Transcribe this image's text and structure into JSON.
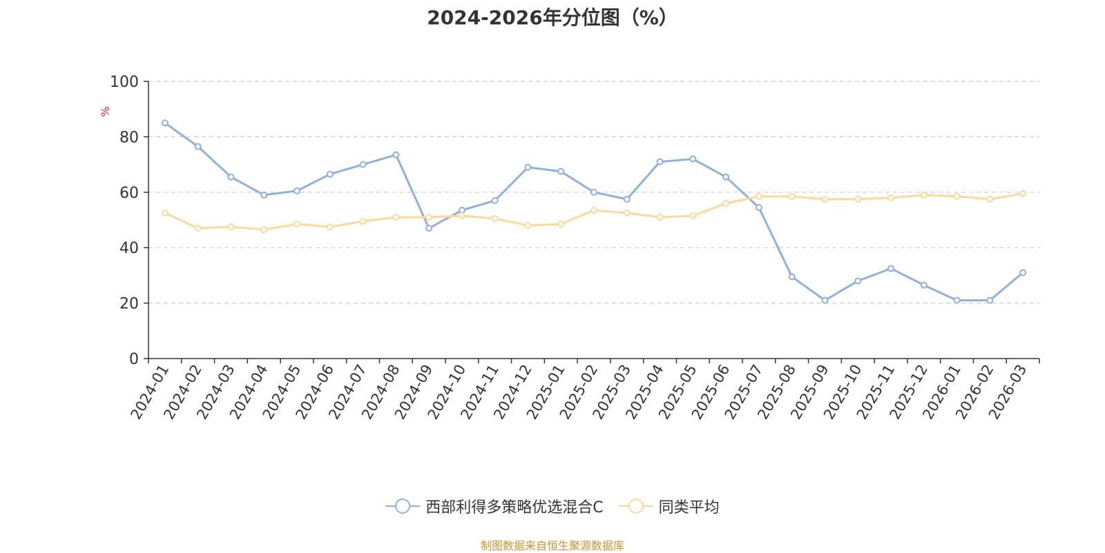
{
  "chart_data": {
    "type": "line",
    "title": "2024-2026年分位图（%）",
    "ylabel": "%",
    "xlabel": "",
    "ylim": [
      0,
      100
    ],
    "yticks": [
      0,
      20,
      40,
      60,
      80,
      100
    ],
    "grid": true,
    "legend_position": "bottom",
    "categories": [
      "2024-01",
      "2024-02",
      "2024-03",
      "2024-04",
      "2024-05",
      "2024-06",
      "2024-07",
      "2024-08",
      "2024-09",
      "2024-10",
      "2024-11",
      "2024-12",
      "2025-01",
      "2025-02",
      "2025-03",
      "2025-04",
      "2025-05",
      "2025-06",
      "2025-07",
      "2025-08",
      "2025-09",
      "2025-10",
      "2025-11",
      "2025-12",
      "2026-01",
      "2026-02",
      "2026-03"
    ],
    "series": [
      {
        "name": "西部利得多策略优选混合C",
        "color": "#8eb0dc",
        "values": [
          85,
          76.5,
          65.5,
          59,
          60.5,
          66.5,
          70,
          73.5,
          47,
          53.5,
          57,
          69,
          67.5,
          60,
          57.5,
          71,
          72,
          65.5,
          54.5,
          29.5,
          21,
          28,
          32.5,
          26.5,
          21,
          21,
          31
        ]
      },
      {
        "name": "同类平均",
        "color": "#fcd998",
        "values": [
          52.5,
          47,
          47.5,
          46.5,
          48.5,
          47.5,
          49.5,
          51,
          51,
          51.5,
          50.5,
          48,
          48.5,
          53.5,
          52.5,
          51,
          51.5,
          56,
          58.5,
          58.5,
          57.5,
          57.5,
          58,
          59,
          58.5,
          57.5,
          59.5
        ]
      }
    ]
  },
  "source_note": "制图数据来自恒生聚源数据库"
}
